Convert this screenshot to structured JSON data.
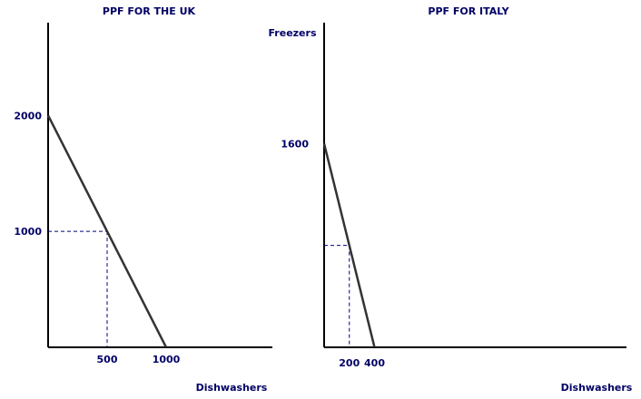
{
  "colors": {
    "text": "#000066",
    "axis": "#000000",
    "ppf_line": "#333333",
    "guide": "#000080",
    "background": "#ffffff"
  },
  "chart_data": [
    {
      "type": "line",
      "title": "PPF FOR THE UK",
      "xlabel": "Dishwashers",
      "ylabel": "",
      "xlim": [
        0,
        1900
      ],
      "ylim": [
        0,
        2800
      ],
      "x_ticks": [
        500,
        1000
      ],
      "y_ticks": [
        2000,
        1000
      ],
      "series": [
        {
          "x": [
            0,
            1000
          ],
          "y": [
            2000,
            0
          ]
        }
      ],
      "point": {
        "x": 500,
        "y": 1000
      },
      "grid": false,
      "legend": "none"
    },
    {
      "type": "line",
      "title": "PPF FOR ITALY",
      "xlabel": "Dishwashers",
      "ylabel": "Freezers",
      "xlim": [
        0,
        2400
      ],
      "ylim": [
        0,
        2550
      ],
      "x_ticks": [
        200,
        400
      ],
      "y_ticks": [
        1600
      ],
      "series": [
        {
          "x": [
            0,
            400
          ],
          "y": [
            1600,
            0
          ]
        }
      ],
      "point": {
        "x": 200,
        "y": 800
      },
      "grid": false,
      "legend": "none"
    }
  ]
}
